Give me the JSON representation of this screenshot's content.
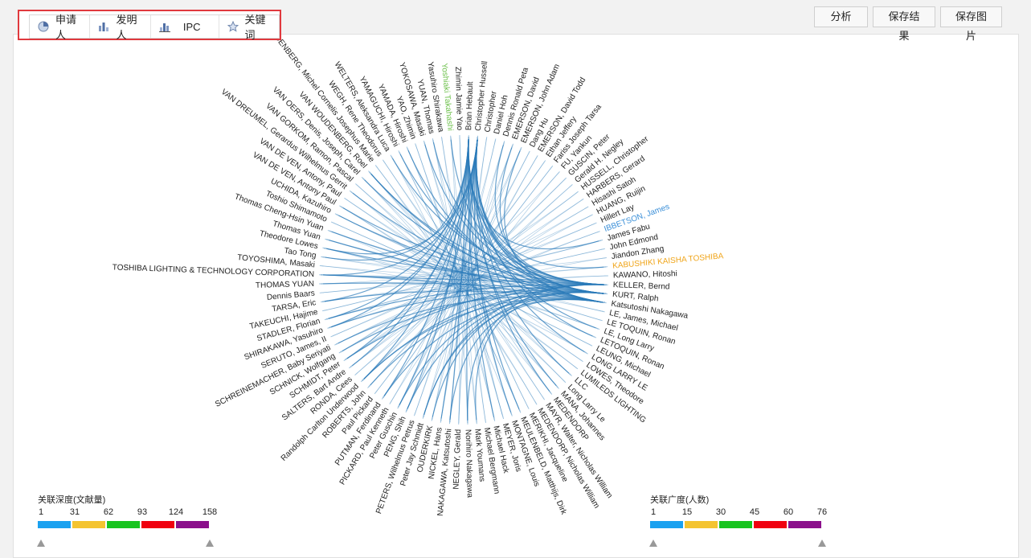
{
  "tabs": [
    {
      "label": "申请人",
      "icon": "pie-chart-icon"
    },
    {
      "label": "发明人",
      "icon": "bar-chart-icon"
    },
    {
      "label": "IPC",
      "icon": "column-chart-icon"
    },
    {
      "label": "关键词",
      "icon": "star-icon"
    }
  ],
  "toolbar": {
    "analyze_label": "分析",
    "save_result_label": "保存结果",
    "save_image_label": "保存图片"
  },
  "colors": {
    "chord": "#2b7bb9",
    "node_line": "#9ec3df",
    "label": "#222222",
    "highlight_orange": "#f0a51a",
    "highlight_green": "#6cc04a",
    "highlight_blue": "#3a8fd8"
  },
  "legend_depth": {
    "title": "关联深度(文献量)",
    "ticks": [
      "1",
      "31",
      "62",
      "93",
      "124",
      "158"
    ],
    "colors": [
      "#1aa1f0",
      "#f4c430",
      "#18c41f",
      "#f0000f",
      "#8b0f8b"
    ]
  },
  "legend_breadth": {
    "title": "关联广度(人数)",
    "ticks": [
      "1",
      "15",
      "30",
      "45",
      "60",
      "76"
    ],
    "colors": [
      "#1aa1f0",
      "#f4c430",
      "#18c41f",
      "#f0000f",
      "#8b0f8b"
    ]
  },
  "chart_data": {
    "type": "chord",
    "nodes": [
      {
        "name": "Brian Hebault"
      },
      {
        "name": "Christopher Hussell"
      },
      {
        "name": "Christopher"
      },
      {
        "name": "Daniel Hoh"
      },
      {
        "name": "Dennis Ronald Peta"
      },
      {
        "name": "EMERSON, David"
      },
      {
        "name": "EMERSON, John Adam"
      },
      {
        "name": "Dang Hu"
      },
      {
        "name": "EMERSON, David Todd"
      },
      {
        "name": "Ethan Jeffery"
      },
      {
        "name": "Fariss Joseph Tarsa"
      },
      {
        "name": "FU, Yankun"
      },
      {
        "name": "GUSCIN, Peter"
      },
      {
        "name": "Gerald H. Negley"
      },
      {
        "name": "HUSSELL, Christopher"
      },
      {
        "name": "HARBERS, Gerard"
      },
      {
        "name": "Hisashi Satoh"
      },
      {
        "name": "HUANG, Ruijin"
      },
      {
        "name": "Hillert Lay"
      },
      {
        "name": "IBBETSON, James"
      },
      {
        "name": "James Fabu"
      },
      {
        "name": "John Edmond"
      },
      {
        "name": "Jiandon Zhang"
      },
      {
        "name": "KABUSHIKI KAISHA TOSHIBA"
      },
      {
        "name": "KAWANO, Hitoshi"
      },
      {
        "name": "KELLER, Bernd"
      },
      {
        "name": "KURT, Ralph"
      },
      {
        "name": "Katsutoshi Nakagawa"
      },
      {
        "name": "LE, James, Michael"
      },
      {
        "name": "LE TOQUIN, Ronan"
      },
      {
        "name": "LE, Long Larry"
      },
      {
        "name": "LETOQUIN, Ronan"
      },
      {
        "name": "LEUNG, Michael"
      },
      {
        "name": "LONG LARRY LE"
      },
      {
        "name": "LOWES, Theodore"
      },
      {
        "name": "LUMILEDS LIGHTING"
      },
      {
        "name": "LLC"
      },
      {
        "name": "Long Larry Le"
      },
      {
        "name": "MANA, Johannes"
      },
      {
        "name": "MEDENDORP"
      },
      {
        "name": "MAYR, Walter, Nicholas William"
      },
      {
        "name": "MEDENDORP, Nicholas William"
      },
      {
        "name": "MERIKHI, Jacqueline"
      },
      {
        "name": "MEULENBELD, Matthijs, Dirk"
      },
      {
        "name": "MONTAGNE, Louis"
      },
      {
        "name": "MEYER, Joris"
      },
      {
        "name": "Michael Hack"
      },
      {
        "name": "Michael Bergmann"
      },
      {
        "name": "Mark Youmans"
      },
      {
        "name": "Norihiro Nakagawa"
      },
      {
        "name": "NEGLEY, Gerald"
      },
      {
        "name": "NAKAGAWA, Katsutoshi"
      },
      {
        "name": "NICKEL, Hans"
      },
      {
        "name": "OUDERKIRK"
      },
      {
        "name": "Peter Jay Schmidt"
      },
      {
        "name": "PETERS, Wilhelmus Petrus"
      },
      {
        "name": "PENG, Shih"
      },
      {
        "name": "Peter Guschin"
      },
      {
        "name": "PICKARD, Paul Kenneth"
      },
      {
        "name": "PUTMAN, Ferdinand"
      },
      {
        "name": "Paul Pickard"
      },
      {
        "name": "ROBERTS, John"
      },
      {
        "name": "Randolph Carlton Underwood"
      },
      {
        "name": "RONDA, Cees"
      },
      {
        "name": "SALTERS, Bart Andre"
      },
      {
        "name": "SCHMIDT, Peter"
      },
      {
        "name": "SCHNICK, Wolfgang"
      },
      {
        "name": "SCHREINEMACHER, Baby Seriyati"
      },
      {
        "name": "SERUTO, James, II"
      },
      {
        "name": "SHIRAKAWA, Yasuhiro"
      },
      {
        "name": "STADLER, Florian"
      },
      {
        "name": "TAKEUCHI, Hajime"
      },
      {
        "name": "TARSA, Eric"
      },
      {
        "name": "Dennis Baars"
      },
      {
        "name": "THOMAS YUAN"
      },
      {
        "name": "TOSHIBA LIGHTING & TECHNOLOGY CORPORATION"
      },
      {
        "name": "TOYOSHIMA, Masaki"
      },
      {
        "name": "Tao Tong"
      },
      {
        "name": "Theodore Lowes"
      },
      {
        "name": "Thomas Yuan"
      },
      {
        "name": "Thomas Cheng-Hsin Yuan"
      },
      {
        "name": "Toshio Shimamoto"
      },
      {
        "name": "UCHIDA, Kazuhiro"
      },
      {
        "name": "VAN DE VEN, Antony Paul"
      },
      {
        "name": "VAN DE VEN, Antony, Paul"
      },
      {
        "name": "VAN DREUMEL, Gerardus Wilhelmus Gerrit"
      },
      {
        "name": "VAN GORKOM, Ramon, Pascal"
      },
      {
        "name": "VAN OERS, Denis, Joseph, Carel"
      },
      {
        "name": "VAN WOUDENBERG, Roel"
      },
      {
        "name": "VAN WOUDENBERG, Michel Cornelis Josephus Marie"
      },
      {
        "name": "WEGH, Rene Theodorus"
      },
      {
        "name": "WELTERS, Aleksandra Luca"
      },
      {
        "name": "YAMAGUCHI, Hiroshi"
      },
      {
        "name": "YAMADA, Hiroshi"
      },
      {
        "name": "YAO, Zhimin"
      },
      {
        "name": "YOKOSAWA, Masaki"
      },
      {
        "name": "YUAN, Thomas"
      },
      {
        "name": "Yasuhiro Shirakawa"
      },
      {
        "name": "Yoshiaki Takahashi"
      },
      {
        "name": "Zhimin Jamie Yao"
      }
    ],
    "highlight_nodes": {
      "KABUSHIKI KAISHA TOSHIBA": "#f0a51a",
      "IBBETSON, James": "#3a8fd8",
      "Yoshiaki Takahashi": "#6cc04a"
    },
    "hubs": [
      "Brian Hebault",
      "Christopher Hussell",
      "KURT, Ralph",
      "Katsutoshi Nakagawa",
      "KELLER, Bernd"
    ]
  }
}
